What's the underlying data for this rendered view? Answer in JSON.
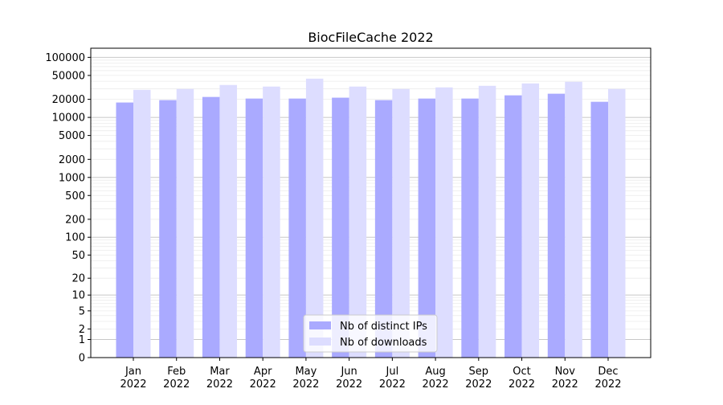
{
  "chart_data": {
    "type": "bar",
    "title": "BiocFileCache 2022",
    "xlabel": "",
    "ylabel": "",
    "yscale": "log(1+y)",
    "ylim": [
      0,
      142000
    ],
    "yticks": [
      0,
      1,
      2,
      5,
      10,
      20,
      50,
      100,
      200,
      500,
      1000,
      2000,
      5000,
      10000,
      20000,
      50000,
      100000
    ],
    "grid": true,
    "legend_position": "bottom-center",
    "categories": [
      "Jan\n2022",
      "Feb\n2022",
      "Mar\n2022",
      "Apr\n2022",
      "May\n2022",
      "Jun\n2022",
      "Jul\n2022",
      "Aug\n2022",
      "Sep\n2022",
      "Oct\n2022",
      "Nov\n2022",
      "Dec\n2022"
    ],
    "series": [
      {
        "name": "Nb of distinct IPs",
        "color": "#aaaaff",
        "values": [
          17700,
          19400,
          21900,
          20600,
          20600,
          21300,
          19400,
          20600,
          20600,
          23300,
          24800,
          18200
        ]
      },
      {
        "name": "Nb of downloads",
        "color": "#ddddff",
        "values": [
          28800,
          29700,
          34700,
          32600,
          44200,
          32600,
          29700,
          31600,
          33600,
          36800,
          39200,
          29700
        ]
      }
    ]
  }
}
